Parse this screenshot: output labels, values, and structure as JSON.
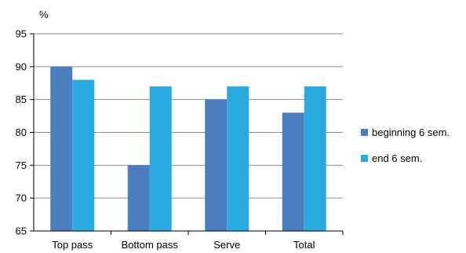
{
  "chart_data": {
    "type": "bar",
    "title": "",
    "xlabel": "",
    "ylabel": "%",
    "ylim": [
      65,
      95
    ],
    "yticks": [
      65,
      70,
      75,
      80,
      85,
      90,
      95
    ],
    "grid": true,
    "legend_position": "right",
    "categories": [
      "Top pass",
      "Bottom pass",
      "Serve",
      "Total"
    ],
    "series": [
      {
        "name": "beginning 6 sem.",
        "color": "#4a7ebf",
        "values": [
          90,
          75,
          85,
          83
        ]
      },
      {
        "name": "end 6 sem.",
        "color": "#29abe2",
        "values": [
          88,
          87,
          87,
          87
        ]
      }
    ]
  }
}
